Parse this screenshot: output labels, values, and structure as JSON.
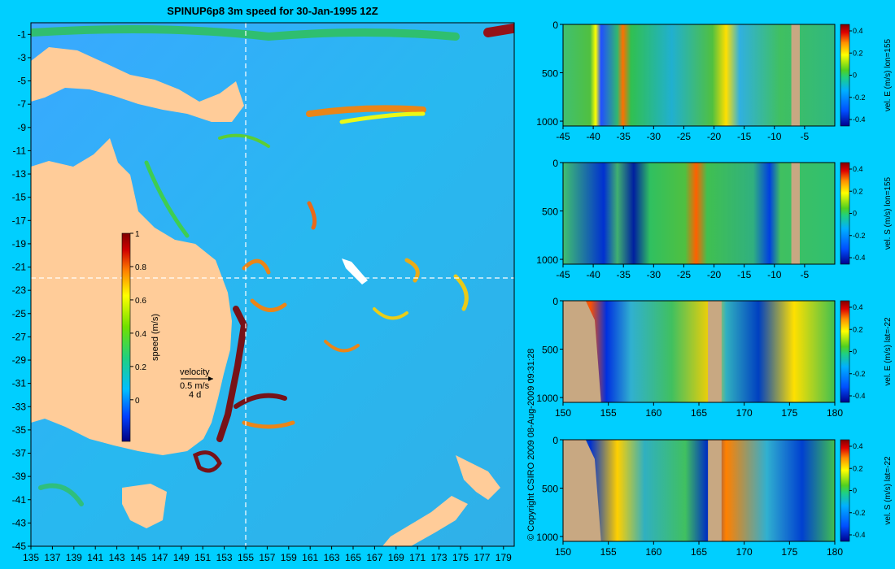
{
  "title": "SPINUP6p8 3m speed for 30-Jan-1995 12Z",
  "copyright": "© Copyright CSIRO 2009   08-Aug-2009 09:31:28",
  "colors": {
    "background": "#00cfff",
    "land_map": "#ffcc99",
    "land_section": "#c8a882",
    "guide_line": "#ffffff",
    "speed_ramp": [
      "#00007f",
      "#0040ff",
      "#00bfff",
      "#20d080",
      "#70e000",
      "#ffff00",
      "#ff8000",
      "#d00000",
      "#7f0000"
    ],
    "vel_ramp": [
      "#00008f",
      "#0050ff",
      "#00b0ff",
      "#20d080",
      "#50d020",
      "#ffff00",
      "#ff9000",
      "#e00000",
      "#800000"
    ]
  },
  "chart_data": [
    {
      "type": "heatmap",
      "title": "SPINUP6p8 3m speed for 30-Jan-1995 12Z",
      "x_ticks": [
        "135",
        "137",
        "139",
        "141",
        "143",
        "145",
        "147",
        "149",
        "151",
        "153",
        "155",
        "157",
        "159",
        "161",
        "163",
        "165",
        "167",
        "169",
        "171",
        "173",
        "175",
        "177",
        "179"
      ],
      "y_ticks": [
        "-1",
        "-3",
        "-5",
        "-7",
        "-9",
        "-11",
        "-13",
        "-15",
        "-17",
        "-19",
        "-21",
        "-23",
        "-25",
        "-27",
        "-29",
        "-31",
        "-33",
        "-35",
        "-37",
        "-39",
        "-41",
        "-43",
        "-45"
      ],
      "xlim": [
        135,
        180
      ],
      "ylim": [
        -45,
        0
      ],
      "guide_lon": 155,
      "guide_lat": -22,
      "colorbar": {
        "label": "speed (m/s)",
        "ticks": [
          "0",
          "0.2",
          "0.4",
          "0.6",
          "0.8",
          "1"
        ],
        "range": [
          -0.25,
          1
        ]
      },
      "velocity_key": {
        "label": "velocity",
        "value": "0.5 m/s",
        "time": "4 d"
      }
    },
    {
      "type": "heatmap",
      "x_ticks": [
        "-45",
        "-40",
        "-35",
        "-30",
        "-25",
        "-20",
        "-15",
        "-10",
        "-5"
      ],
      "xlim": [
        -45,
        0
      ],
      "y_ticks": [
        "0",
        "500",
        "1000"
      ],
      "ylim": [
        1050,
        0
      ],
      "colorbar": {
        "label": "vel. E (m/s) lon=155",
        "ticks": [
          "0.4",
          "0.2",
          "0",
          "-0.2",
          "-0.4"
        ]
      }
    },
    {
      "type": "heatmap",
      "x_ticks": [
        "-45",
        "-40",
        "-35",
        "-30",
        "-25",
        "-20",
        "-15",
        "-10",
        "-5"
      ],
      "xlim": [
        -45,
        0
      ],
      "y_ticks": [
        "0",
        "500",
        "1000"
      ],
      "ylim": [
        1050,
        0
      ],
      "colorbar": {
        "label": "vel. S (m/s) lon=155",
        "ticks": [
          "0.4",
          "0.2",
          "0",
          "-0.2",
          "-0.4"
        ]
      }
    },
    {
      "type": "heatmap",
      "x_ticks": [
        "150",
        "155",
        "160",
        "165",
        "170",
        "175",
        "180"
      ],
      "xlim": [
        150,
        180
      ],
      "y_ticks": [
        "0",
        "500",
        "1000"
      ],
      "ylim": [
        1050,
        0
      ],
      "colorbar": {
        "label": "vel. E (m/s) lat=-22",
        "ticks": [
          "0.4",
          "0.2",
          "0",
          "-0.2",
          "-0.4"
        ]
      }
    },
    {
      "type": "heatmap",
      "x_ticks": [
        "150",
        "155",
        "160",
        "165",
        "170",
        "175",
        "180"
      ],
      "xlim": [
        150,
        180
      ],
      "y_ticks": [
        "0",
        "500",
        "1000"
      ],
      "ylim": [
        1050,
        0
      ],
      "colorbar": {
        "label": "vel. S (m/s) lat=-22",
        "ticks": [
          "0.4",
          "0.2",
          "0",
          "-0.2",
          "-0.4"
        ]
      }
    }
  ]
}
